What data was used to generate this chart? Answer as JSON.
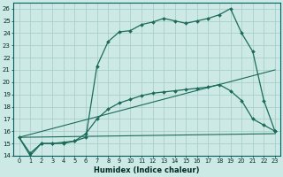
{
  "xlabel": "Humidex (Indice chaleur)",
  "xlim": [
    -0.5,
    23.5
  ],
  "ylim": [
    14,
    26.5
  ],
  "yticks": [
    14,
    15,
    16,
    17,
    18,
    19,
    20,
    21,
    22,
    23,
    24,
    25,
    26
  ],
  "xticks": [
    0,
    1,
    2,
    3,
    4,
    5,
    6,
    7,
    8,
    9,
    10,
    11,
    12,
    13,
    14,
    15,
    16,
    17,
    18,
    19,
    20,
    21,
    22,
    23
  ],
  "bg_color": "#cce9e5",
  "grid_color": "#aacfcb",
  "line_color": "#1a6b5a",
  "curve1_x": [
    0,
    1,
    2,
    3,
    4,
    5,
    6,
    7,
    8,
    9,
    10,
    11,
    12,
    13,
    14,
    15,
    16,
    17,
    18,
    19,
    20,
    21,
    22,
    23
  ],
  "curve1_y": [
    15.5,
    14.0,
    15.0,
    15.0,
    15.0,
    15.2,
    15.5,
    21.3,
    23.3,
    24.1,
    24.2,
    24.7,
    24.9,
    25.2,
    25.0,
    24.8,
    25.0,
    25.2,
    25.5,
    26.0,
    24.0,
    22.5,
    18.5,
    16.0
  ],
  "curve2_x": [
    0,
    1,
    2,
    3,
    4,
    5,
    6,
    7,
    8,
    9,
    10,
    11,
    12,
    13,
    14,
    15,
    16,
    17,
    18,
    19,
    20,
    21,
    22,
    23
  ],
  "curve2_y": [
    15.5,
    14.2,
    15.0,
    15.0,
    15.1,
    15.2,
    15.8,
    17.0,
    17.8,
    18.3,
    18.6,
    18.9,
    19.1,
    19.2,
    19.3,
    19.4,
    19.5,
    19.6,
    19.8,
    19.3,
    18.5,
    17.0,
    16.5,
    16.0
  ],
  "curve3_x": [
    0,
    23
  ],
  "curve3_y": [
    15.5,
    21.0
  ],
  "curve4_x": [
    0,
    23
  ],
  "curve4_y": [
    15.5,
    15.8
  ]
}
